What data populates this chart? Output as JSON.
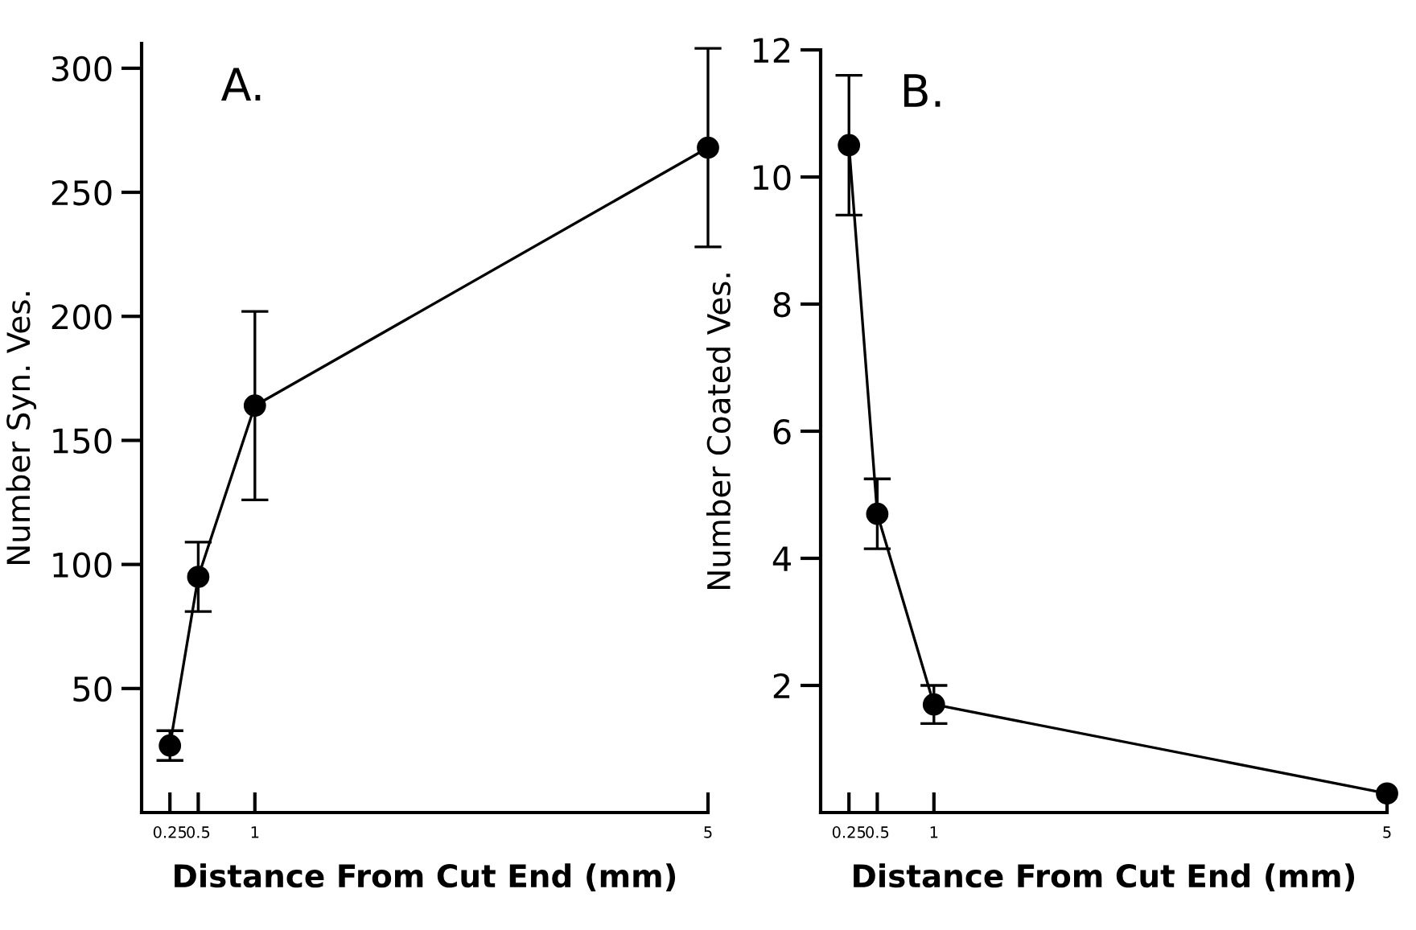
{
  "chart_data": [
    {
      "type": "line",
      "xlabel": "Distance From Cut End (mm)",
      "ylabel": "Number Syn. Ves.",
      "annotations": [
        "A."
      ],
      "x": [
        0.25,
        0.5,
        1,
        5
      ],
      "values": [
        27,
        95,
        164,
        268
      ],
      "errors": [
        6,
        14,
        38,
        40
      ],
      "color": "#000000",
      "marker": "circle",
      "xlim": [
        0,
        5
      ],
      "xticks": [
        0.25,
        0.5,
        1,
        5
      ],
      "ylim": [
        0,
        310
      ],
      "yticks": [
        50,
        100,
        150,
        200,
        250,
        300
      ]
    },
    {
      "type": "line",
      "xlabel": "Distance From Cut End (mm)",
      "ylabel": "Number Coated Ves.",
      "annotations": [
        "B."
      ],
      "x": [
        0.25,
        0.5,
        1,
        5
      ],
      "values": [
        10.5,
        4.7,
        1.7,
        0.3
      ],
      "errors": [
        1.1,
        0.55,
        0.3,
        null
      ],
      "color": "#000000",
      "marker": "circle",
      "xlim": [
        0,
        5
      ],
      "xticks": [
        0.25,
        0.5,
        1,
        5
      ],
      "ylim": [
        0,
        12
      ],
      "yticks": [
        2,
        4,
        6,
        8,
        10,
        12
      ]
    }
  ]
}
